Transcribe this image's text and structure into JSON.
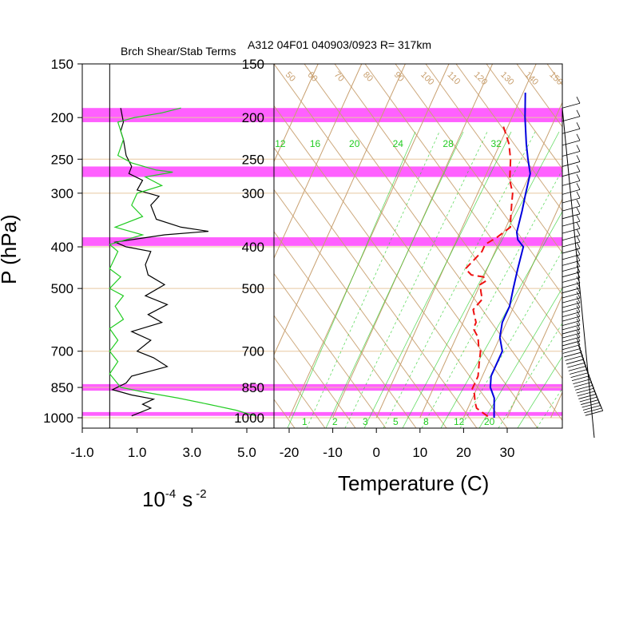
{
  "figure": {
    "header": "A312 04F01 040903/0923 R= 317km",
    "left_title": "Brch Shear/Stab Terms",
    "y_label": "P (hPa)",
    "left_xlabel_base": "10",
    "left_xlabel_exp": "-4",
    "left_xlabel_unit": "s",
    "left_xlabel_unit_exp": "-2",
    "right_xlabel": "Temperature (C)"
  },
  "colors": {
    "band": "#ff44ff",
    "temperature": "#0000dd",
    "dewpoint": "#ee1111",
    "green": "#22cc22",
    "theta": "#c8a070",
    "axis": "#000000",
    "isobar": "#e8c8a0"
  },
  "chart_data": [
    {
      "type": "line",
      "title": "Brch Shear/Stab Terms",
      "xlabel": "10^-4 s^-2",
      "ylabel": "P (hPa)",
      "xlim": [
        -1.0,
        5.5
      ],
      "ylim": [
        1030,
        150
      ],
      "x_ticks": [
        -1.0,
        1.0,
        3.0,
        5.0
      ],
      "x_tick_labels": [
        "-1.0",
        "1.0",
        "3.0",
        "5.0"
      ],
      "y_ticks": [
        150,
        200,
        250,
        300,
        400,
        500,
        700,
        850,
        1000
      ],
      "y_tick_labels": [
        "150",
        "200",
        "250",
        "300",
        "400",
        "500",
        "700",
        "850",
        "1000"
      ],
      "zero_line": 0.0,
      "highlight_bands_hpa": [
        [
          190,
          205
        ],
        [
          260,
          275
        ],
        [
          380,
          398
        ],
        [
          835,
          865
        ],
        [
          970,
          990
        ]
      ],
      "series": [
        {
          "name": "shear term (black)",
          "color": "#000000",
          "points": [
            [
              0.4,
              190
            ],
            [
              0.5,
              205
            ],
            [
              0.4,
              215
            ],
            [
              0.5,
              225
            ],
            [
              0.6,
              245
            ],
            [
              0.8,
              260
            ],
            [
              0.7,
              270
            ],
            [
              1.2,
              280
            ],
            [
              1.0,
              295
            ],
            [
              1.8,
              305
            ],
            [
              1.5,
              320
            ],
            [
              1.7,
              345
            ],
            [
              2.6,
              360
            ],
            [
              3.6,
              368
            ],
            [
              2.0,
              375
            ],
            [
              0.2,
              390
            ],
            [
              0.6,
              400
            ],
            [
              1.5,
              410
            ],
            [
              1.3,
              440
            ],
            [
              1.4,
              465
            ],
            [
              2.0,
              490
            ],
            [
              1.3,
              520
            ],
            [
              2.1,
              545
            ],
            [
              1.4,
              575
            ],
            [
              1.9,
              600
            ],
            [
              0.8,
              630
            ],
            [
              1.5,
              660
            ],
            [
              1.0,
              700
            ],
            [
              1.6,
              725
            ],
            [
              2.1,
              760
            ],
            [
              0.8,
              800
            ],
            [
              0.6,
              830
            ],
            [
              0.1,
              860
            ],
            [
              0.8,
              885
            ],
            [
              1.6,
              905
            ],
            [
              1.2,
              930
            ],
            [
              1.5,
              950
            ],
            [
              0.8,
              990
            ]
          ]
        },
        {
          "name": "stability term (green)",
          "color": "#22cc22",
          "points": [
            [
              2.6,
              190
            ],
            [
              1.9,
              195
            ],
            [
              0.9,
              200
            ],
            [
              0.3,
              205
            ],
            [
              0.5,
              225
            ],
            [
              0.3,
              245
            ],
            [
              0.8,
              255
            ],
            [
              1.7,
              265
            ],
            [
              2.3,
              268
            ],
            [
              1.3,
              275
            ],
            [
              1.9,
              288
            ],
            [
              1.0,
              300
            ],
            [
              0.8,
              320
            ],
            [
              1.2,
              340
            ],
            [
              0.2,
              360
            ],
            [
              1.2,
              375
            ],
            [
              0.6,
              385
            ],
            [
              0.0,
              395
            ],
            [
              0.3,
              410
            ],
            [
              0.0,
              450
            ],
            [
              0.4,
              470
            ],
            [
              0.0,
              500
            ],
            [
              0.5,
              520
            ],
            [
              0.2,
              550
            ],
            [
              0.5,
              590
            ],
            [
              0.0,
              620
            ],
            [
              0.3,
              660
            ],
            [
              0.0,
              700
            ],
            [
              0.3,
              740
            ],
            [
              0.0,
              790
            ],
            [
              0.4,
              850
            ],
            [
              1.2,
              870
            ],
            [
              2.5,
              900
            ],
            [
              3.6,
              930
            ],
            [
              4.6,
              960
            ],
            [
              5.3,
              990
            ]
          ]
        }
      ]
    },
    {
      "type": "line",
      "title": "A312 04F01 040903/0923 R= 317km",
      "xlabel": "Temperature (C)",
      "ylabel": "P (hPa)",
      "skewed": true,
      "xlim": [
        -25,
        40
      ],
      "ylim": [
        1030,
        150
      ],
      "x_ticks": [
        -20,
        -10,
        0,
        10,
        20,
        30
      ],
      "x_tick_labels": [
        "-20",
        "-10",
        "0",
        "10",
        "20",
        "30"
      ],
      "y_ticks": [
        150,
        200,
        250,
        300,
        400,
        500,
        700,
        850,
        1000
      ],
      "y_tick_labels": [
        "150",
        "200",
        "250",
        "300",
        "400",
        "500",
        "700",
        "850",
        "1000"
      ],
      "mixing_ratio_labels": [
        "12",
        "16",
        "20",
        "24",
        "28",
        "32"
      ],
      "mixing_ratio_label_x": [
        -20.5,
        -12.5,
        -3.5,
        6.5,
        18,
        29
      ],
      "theta_labels": [
        "50",
        "60",
        "70",
        "80",
        "90",
        "100",
        "110",
        "120",
        "130",
        "140",
        "150"
      ],
      "theta_label_x": [
        -22.5,
        -17.5,
        -11.5,
        -5,
        2,
        8,
        14,
        20,
        26,
        31.5,
        37
      ],
      "highlight_bands_hpa": [
        [
          190,
          205
        ],
        [
          260,
          275
        ],
        [
          380,
          398
        ],
        [
          835,
          865
        ],
        [
          970,
          990
        ]
      ],
      "series": [
        {
          "name": "Temperature",
          "color": "#0000dd",
          "dash": false,
          "points": [
            [
              0.5,
              175
            ],
            [
              3,
              200
            ],
            [
              6,
              230
            ],
            [
              8,
              250
            ],
            [
              10,
              270
            ],
            [
              11,
              300
            ],
            [
              12,
              330
            ],
            [
              13,
              370
            ],
            [
              14,
              385
            ],
            [
              16,
              400
            ],
            [
              17,
              450
            ],
            [
              18,
              500
            ],
            [
              19,
              550
            ],
            [
              19,
              600
            ],
            [
              20,
              650
            ],
            [
              22,
              700
            ],
            [
              22,
              750
            ],
            [
              22,
              800
            ],
            [
              23,
              850
            ],
            [
              25,
              900
            ],
            [
              26,
              950
            ],
            [
              27,
              1000
            ]
          ]
        },
        {
          "name": "Dew point",
          "color": "#ee1111",
          "dash": true,
          "points": [
            [
              -1,
              210
            ],
            [
              2,
              230
            ],
            [
              4,
              250
            ],
            [
              6,
              280
            ],
            [
              8,
              300
            ],
            [
              9,
              320
            ],
            [
              10,
              340
            ],
            [
              11,
              360
            ],
            [
              9,
              380
            ],
            [
              7,
              395
            ],
            [
              7,
              410
            ],
            [
              6,
              430
            ],
            [
              5,
              450
            ],
            [
              7,
              465
            ],
            [
              10,
              470
            ],
            [
              11,
              480
            ],
            [
              10,
              490
            ],
            [
              11,
              510
            ],
            [
              12,
              530
            ],
            [
              11,
              560
            ],
            [
              12,
              580
            ],
            [
              13,
              600
            ],
            [
              13,
              620
            ],
            [
              15,
              650
            ],
            [
              16,
              680
            ],
            [
              17,
              700
            ],
            [
              18,
              750
            ],
            [
              19,
              800
            ],
            [
              19,
              830
            ],
            [
              19,
              860
            ],
            [
              20,
              880
            ],
            [
              21,
              920
            ],
            [
              22,
              950
            ],
            [
              24,
              975
            ],
            [
              26,
              1000
            ]
          ]
        }
      ]
    }
  ]
}
